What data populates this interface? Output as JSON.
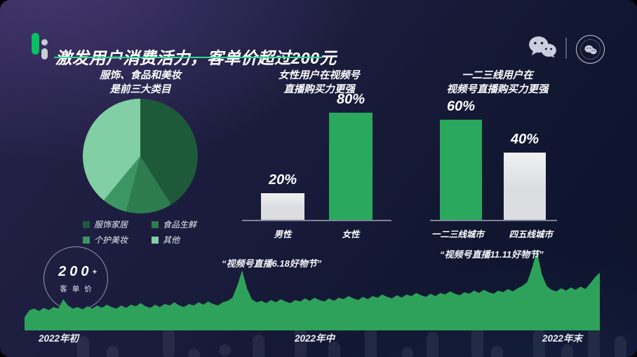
{
  "header": {
    "title": "激发用户消费活力，客单价超过200元",
    "accent_green": "#07C160",
    "underline_color": "#2FD991"
  },
  "chart_data": [
    {
      "type": "pie",
      "title": "服饰、食品和美妆\n是前三大类目",
      "slices": [
        {
          "label": "服饰家居",
          "value": 41,
          "color": "#1E5A3A"
        },
        {
          "label": "食品生鲜",
          "value": 13,
          "color": "#2E7B50"
        },
        {
          "label": "个护美妆",
          "value": 7,
          "color": "#3C9663"
        },
        {
          "label": "其他",
          "value": 39,
          "color": "#82CEA5"
        }
      ],
      "legend_position": "bottom"
    },
    {
      "type": "bar",
      "title": "女性用户在视频号\n直播购买力更强",
      "categories": [
        "男性",
        "女性"
      ],
      "values": [
        20,
        80
      ],
      "value_labels": [
        "20%",
        "80%"
      ],
      "colors": [
        "#DCDDE1",
        "#2AA85D"
      ],
      "ylim": [
        0,
        100
      ]
    },
    {
      "type": "bar",
      "title": "一二三线用户在\n视频号直播购买力更强",
      "categories": [
        "一二三线城市",
        "四五线城市"
      ],
      "values": [
        60,
        40
      ],
      "value_labels": [
        "60%",
        "40%"
      ],
      "colors": [
        "#2AA85D",
        "#DCDDE1"
      ],
      "ylim": [
        0,
        100
      ]
    },
    {
      "type": "area",
      "x_labels": [
        "2022年初",
        "2022年中",
        "2022年末"
      ],
      "annotations": [
        "“视频号直播6.18好物节”",
        "“视频号直播11.11好物节”"
      ],
      "badge": {
        "number": "200",
        "plus": "+",
        "caption": "客单价"
      },
      "color": "#2EA25A",
      "ylim": [
        0,
        100
      ],
      "values": [
        15,
        24,
        26,
        23,
        27,
        24,
        28,
        26,
        38,
        30,
        26,
        28,
        25,
        29,
        26,
        30,
        27,
        31,
        28,
        26,
        30,
        27,
        31,
        29,
        33,
        29,
        27,
        31,
        28,
        32,
        30,
        34,
        30,
        28,
        32,
        30,
        34,
        31,
        35,
        32,
        30,
        34,
        36,
        40,
        55,
        75,
        52,
        38,
        34,
        36,
        33,
        37,
        34,
        38,
        35,
        33,
        37,
        35,
        39,
        36,
        40,
        37,
        35,
        39,
        36,
        40,
        38,
        42,
        39,
        37,
        41,
        38,
        42,
        40,
        44,
        41,
        39,
        43,
        40,
        44,
        42,
        46,
        43,
        41,
        45,
        42,
        46,
        44,
        48,
        45,
        43,
        47,
        45,
        49,
        46,
        50,
        47,
        45,
        49,
        47,
        51,
        48,
        52,
        55,
        60,
        78,
        100,
        70,
        55,
        50,
        48,
        52,
        49,
        53,
        50,
        54,
        51,
        58,
        66,
        72
      ]
    }
  ]
}
